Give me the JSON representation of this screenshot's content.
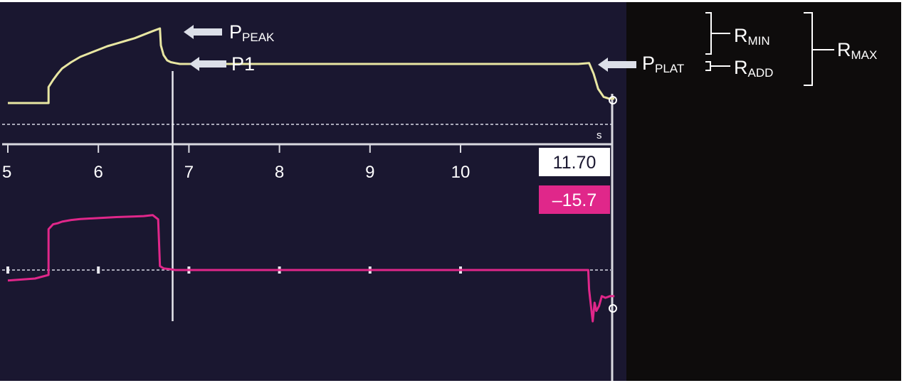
{
  "chart_data": {
    "type": "line",
    "colors": {
      "background": "#1a1730",
      "right_panel": "#0e0c0c",
      "pressure": "#e8e6a2",
      "flow": "#e0278a",
      "axis": "#d9d9e0",
      "value_box_bg": "#ffffff",
      "flow_box_bg": "#e0278a"
    },
    "x_axis": {
      "unit": "s",
      "ticks": [
        "5",
        "6",
        "7",
        "8",
        "9",
        "10"
      ],
      "xlim": [
        5,
        11.7
      ]
    },
    "cursor": {
      "x": 6.82
    },
    "readouts": {
      "time": "11.70",
      "flow": "–15.7"
    },
    "series": [
      {
        "id": "pressure",
        "color": "#e8e6a2",
        "x": [
          5.0,
          5.45,
          5.45,
          5.5,
          5.55,
          5.6,
          5.7,
          5.8,
          5.9,
          6.0,
          6.1,
          6.2,
          6.3,
          6.4,
          6.5,
          6.6,
          6.68,
          6.69,
          6.72,
          6.76,
          6.8,
          6.85,
          6.9,
          7.0,
          7.2,
          7.5,
          8.0,
          8.5,
          9.0,
          9.5,
          10.0,
          10.5,
          11.0,
          11.3,
          11.42,
          11.47,
          11.52,
          11.58,
          11.64,
          11.7
        ],
        "y": [
          0.0,
          0.0,
          0.18,
          0.26,
          0.33,
          0.39,
          0.46,
          0.52,
          0.56,
          0.6,
          0.64,
          0.67,
          0.7,
          0.73,
          0.77,
          0.81,
          0.84,
          0.65,
          0.54,
          0.48,
          0.46,
          0.45,
          0.44,
          0.44,
          0.44,
          0.44,
          0.44,
          0.44,
          0.44,
          0.44,
          0.44,
          0.44,
          0.44,
          0.44,
          0.45,
          0.33,
          0.16,
          0.07,
          0.05,
          0.05
        ]
      },
      {
        "id": "flow",
        "color": "#e0278a",
        "x": [
          5.0,
          5.3,
          5.45,
          5.45,
          5.5,
          5.55,
          5.6,
          5.7,
          5.8,
          6.0,
          6.2,
          6.4,
          6.5,
          6.6,
          6.66,
          6.68,
          6.72,
          6.78,
          6.85,
          7.0,
          8.0,
          9.0,
          10.0,
          11.0,
          11.3,
          11.41,
          11.42,
          11.44,
          11.46,
          11.48,
          11.5,
          11.53,
          11.56,
          11.6,
          11.65,
          11.7
        ],
        "y": [
          -3.2,
          -2.6,
          -1.5,
          12.5,
          14.0,
          14.3,
          14.8,
          15.3,
          15.6,
          15.9,
          16.2,
          16.4,
          16.5,
          16.8,
          15.5,
          1.2,
          0.5,
          0.3,
          0.0,
          0.0,
          0.0,
          0.0,
          0.0,
          0.0,
          0.0,
          0.0,
          -6.0,
          -11.0,
          -15.7,
          -10.0,
          -12.5,
          -11.0,
          -8.0,
          -8.5,
          -8.0,
          -8.0
        ]
      }
    ],
    "annotations": [
      {
        "id": "ppeak",
        "main": "P",
        "sub": "PEAK"
      },
      {
        "id": "p1",
        "main": "P1",
        "sub": ""
      },
      {
        "id": "pplat",
        "main": "P",
        "sub": "PLAT"
      },
      {
        "id": "rmin",
        "main": "R",
        "sub": "MIN"
      },
      {
        "id": "radd",
        "main": "R",
        "sub": "ADD"
      },
      {
        "id": "rmax",
        "main": "R",
        "sub": "MAX"
      }
    ]
  }
}
